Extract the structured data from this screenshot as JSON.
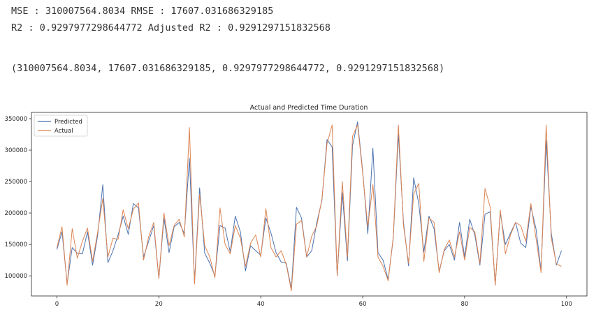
{
  "output": {
    "line1": "MSE : 310007564.8034 RMSE : 17607.031686329185",
    "line2": "R2 : 0.9297977298644772 Adjusted R2 : 0.9291297151832568",
    "line3": "(310007564.8034, 17607.031686329185, 0.9297977298644772, 0.9291297151832568)"
  },
  "chart_data": {
    "type": "line",
    "title": "Actual and Predicted Time Duration",
    "xlabel": "",
    "ylabel": "",
    "xlim": [
      -5,
      104
    ],
    "ylim": [
      68000,
      360000
    ],
    "xticks": [
      0,
      20,
      40,
      60,
      80,
      100
    ],
    "yticks": [
      100000,
      150000,
      200000,
      250000,
      300000,
      350000
    ],
    "legend_position": "top-left",
    "grid": false,
    "series": [
      {
        "name": "Predicted",
        "color": "#4c72b0",
        "x": [
          0,
          1,
          2,
          3,
          4,
          5,
          6,
          7,
          8,
          9,
          10,
          11,
          12,
          13,
          14,
          15,
          16,
          17,
          18,
          19,
          20,
          21,
          22,
          23,
          24,
          25,
          26,
          27,
          28,
          29,
          30,
          31,
          32,
          33,
          34,
          35,
          36,
          37,
          38,
          39,
          40,
          41,
          42,
          43,
          44,
          45,
          46,
          47,
          48,
          49,
          50,
          51,
          52,
          53,
          54,
          55,
          56,
          57,
          58,
          59,
          60,
          61,
          62,
          63,
          64,
          65,
          66,
          67,
          68,
          69,
          70,
          71,
          72,
          73,
          74,
          75,
          76,
          77,
          78,
          79,
          80,
          81,
          82,
          83,
          84,
          85,
          86,
          87,
          88,
          89,
          90,
          91,
          92,
          93,
          94,
          95,
          96,
          97,
          98,
          99
        ],
        "values": [
          142000,
          170000,
          88000,
          145000,
          136000,
          135000,
          170000,
          117000,
          165000,
          245000,
          121000,
          140000,
          165000,
          195000,
          166000,
          215000,
          208000,
          130000,
          155000,
          180000,
          96000,
          192000,
          137000,
          178000,
          185000,
          167000,
          287000,
          90000,
          240000,
          136000,
          120000,
          100000,
          180000,
          176000,
          138000,
          195000,
          170000,
          108000,
          148000,
          140000,
          133000,
          192000,
          168000,
          137000,
          122000,
          120000,
          79000,
          209000,
          192000,
          130000,
          140000,
          185000,
          220000,
          317000,
          305000,
          100000,
          232000,
          124000,
          307000,
          345000,
          266000,
          167000,
          303000,
          137000,
          125000,
          94000,
          160000,
          325000,
          185000,
          116000,
          256000,
          215000,
          138000,
          195000,
          175000,
          107000,
          140000,
          150000,
          125000,
          185000,
          130000,
          190000,
          165000,
          117000,
          198000,
          202000,
          86000,
          200000,
          150000,
          168000,
          185000,
          152000,
          145000,
          210000,
          175000,
          108000,
          315000,
          168000,
          117000,
          140000
        ]
      },
      {
        "name": "Actual",
        "color": "#dd8452",
        "x": [
          0,
          1,
          2,
          3,
          4,
          5,
          6,
          7,
          8,
          9,
          10,
          11,
          12,
          13,
          14,
          15,
          16,
          17,
          18,
          19,
          20,
          21,
          22,
          23,
          24,
          25,
          26,
          27,
          28,
          29,
          30,
          31,
          32,
          33,
          34,
          35,
          36,
          37,
          38,
          39,
          40,
          41,
          42,
          43,
          44,
          45,
          46,
          47,
          48,
          49,
          50,
          51,
          52,
          53,
          54,
          55,
          56,
          57,
          58,
          59,
          60,
          61,
          62,
          63,
          64,
          65,
          66,
          67,
          68,
          69,
          70,
          71,
          72,
          73,
          74,
          75,
          76,
          77,
          78,
          79,
          80,
          81,
          82,
          83,
          84,
          85,
          86,
          87,
          88,
          89,
          90,
          91,
          92,
          93,
          94,
          95,
          96,
          97,
          98,
          99
        ],
        "values": [
          145000,
          178000,
          85000,
          175000,
          128000,
          155000,
          176000,
          123000,
          170000,
          223000,
          130000,
          160000,
          158000,
          205000,
          175000,
          206000,
          216000,
          125000,
          162000,
          185000,
          96000,
          200000,
          148000,
          180000,
          190000,
          162000,
          336000,
          87000,
          230000,
          148000,
          130000,
          97000,
          208000,
          150000,
          135000,
          180000,
          160000,
          115000,
          152000,
          165000,
          130000,
          207000,
          145000,
          130000,
          140000,
          118000,
          76000,
          182000,
          188000,
          130000,
          163000,
          180000,
          222000,
          310000,
          340000,
          100000,
          250000,
          130000,
          322000,
          340000,
          263000,
          178000,
          245000,
          130000,
          115000,
          92000,
          162000,
          340000,
          180000,
          120000,
          230000,
          247000,
          123000,
          192000,
          185000,
          105000,
          142000,
          157000,
          130000,
          170000,
          125000,
          177000,
          170000,
          120000,
          239000,
          210000,
          85000,
          205000,
          135000,
          165000,
          185000,
          180000,
          155000,
          215000,
          160000,
          105000,
          340000,
          160000,
          119000,
          115000
        ]
      }
    ]
  }
}
